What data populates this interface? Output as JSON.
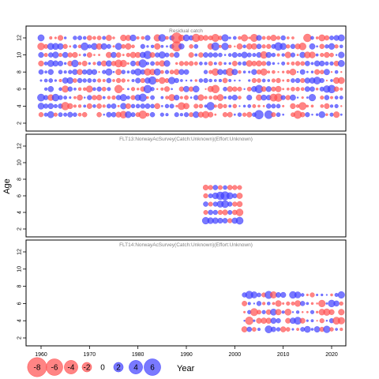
{
  "chart_data": {
    "type": "scatter",
    "chart_style": "bubble residual plot (lattice panels)",
    "xlabel": "Year",
    "ylabel": "Age",
    "colors": {
      "positive": "#4040FF",
      "negative": "#FF5050"
    },
    "x_ticks": [
      1960,
      1970,
      1980,
      1990,
      2000,
      2010,
      2020
    ],
    "y_ticks": [
      2,
      4,
      6,
      8,
      10,
      12
    ],
    "legend": {
      "values": [
        -8,
        -6,
        -4,
        -2,
        0,
        2,
        4,
        6
      ],
      "labels": [
        "-8",
        "-6",
        "-4",
        "-2",
        "0",
        "2",
        "4",
        "6"
      ],
      "placement": "bottom-left"
    },
    "panels": [
      {
        "title": "Residual catch",
        "year_range": [
          1960,
          2022
        ],
        "ages": [
          3,
          4,
          5,
          6,
          7,
          8,
          9,
          10,
          11,
          12
        ],
        "xlim": [
          1956,
          2026
        ],
        "ylim": [
          1.5,
          13.5
        ],
        "residuals_note": "annual residuals per age, estimated from bubble size and color",
        "highlights": [
          {
            "year": 1988,
            "age": 12,
            "value": -4.5
          },
          {
            "year": 1988,
            "age": 11,
            "value": -4.0
          },
          {
            "year": 2005,
            "age": 3,
            "value": 3.2
          },
          {
            "year": 2007,
            "age": 3,
            "value": 2.8
          }
        ]
      },
      {
        "title": "FLT13:NorwayAcSurvey(Catch:Unknown)(Effort:Unknown)",
        "year_range": [
          1994,
          2001
        ],
        "ages": [
          3,
          4,
          5,
          6,
          7
        ],
        "xlim": [
          1956,
          2026
        ],
        "ylim": [
          1.5,
          13.5
        ],
        "residuals": [
          {
            "age": 7,
            "values": [
              -1.2,
              -0.9,
              1.0,
              -0.8,
              0.7,
              -1.0,
              -0.9,
              -0.8
            ]
          },
          {
            "age": 6,
            "values": [
              -0.9,
              0.8,
              1.6,
              2.6,
              3.0,
              1.8,
              0.9,
              -1.4
            ]
          },
          {
            "age": 5,
            "values": [
              1.0,
              -0.8,
              0.9,
              1.8,
              2.2,
              0.9,
              -0.9,
              -1.3
            ]
          },
          {
            "age": 4,
            "values": [
              -0.8,
              1.0,
              0.9,
              -0.9,
              -1.2,
              0.8,
              -1.0,
              -2.1
            ]
          },
          {
            "age": 3,
            "values": [
              2.0,
              1.6,
              1.5,
              1.2,
              1.1,
              -0.9,
              1.4,
              2.2
            ]
          }
        ]
      },
      {
        "title": "FLT14:NorwayAcSurvey(Catch:Unknown)(Effort:Unknown)",
        "year_range": [
          2002,
          2022
        ],
        "ages": [
          3,
          4,
          5,
          6,
          7
        ],
        "xlim": [
          1956,
          2026
        ],
        "ylim": [
          1.5,
          13.5
        ],
        "residuals_note": "annual residuals per age, estimated from bubble size and color"
      }
    ]
  }
}
